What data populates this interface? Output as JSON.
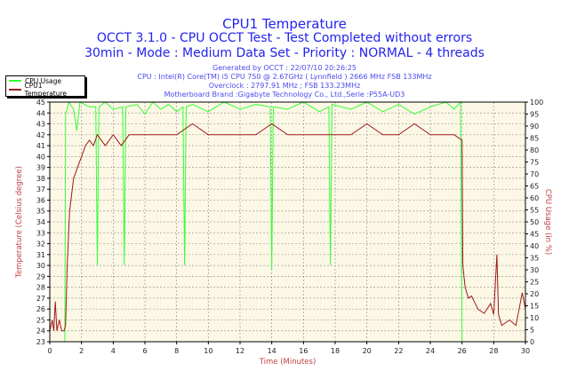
{
  "header": {
    "title": "CPU1 Temperature",
    "subtitle1": "OCCT 3.1.0 - CPU OCCT Test - Test Completed without errors",
    "subtitle2": "30min - Mode : Medium Data Set - Priority : NORMAL - 4 threads",
    "info": [
      "Generated by OCCT : 22/07/10 20:26:25",
      "CPU : Intel(R) Core(TM) i5 CPU 750 @ 2.67GHz ( Lynnfield ) 2666 MHz FSB 133MHz",
      "Overclock : 2797.91 MHz ; FSB 133.23MHz",
      "Motherboard Brand :Gigabyte Technology Co., Ltd.,Serie :P55A-UD3"
    ]
  },
  "colors": {
    "title": "#2222ee",
    "axis_label": "#c04040",
    "cpu_usage": "#33ff33",
    "temperature": "#a01818",
    "plot_bg": "#fdf8e6"
  },
  "chart_data": {
    "type": "line",
    "xlabel": "Time (Minutes)",
    "ylabel_left": "Temperature (Celsius degree)",
    "ylabel_right": "CPU Usage (in %)",
    "xlim": [
      0,
      30
    ],
    "ylim_left": [
      23,
      45
    ],
    "ylim_right": [
      0,
      100
    ],
    "x_ticks": [
      0,
      2,
      4,
      6,
      8,
      10,
      12,
      14,
      16,
      18,
      20,
      22,
      24,
      26,
      28,
      30
    ],
    "y_ticks_left": [
      23,
      24,
      25,
      26,
      27,
      28,
      29,
      30,
      31,
      32,
      33,
      34,
      35,
      36,
      37,
      38,
      39,
      40,
      41,
      42,
      43,
      44,
      45
    ],
    "y_ticks_right": [
      0,
      5,
      10,
      15,
      20,
      25,
      30,
      35,
      40,
      45,
      50,
      55,
      60,
      65,
      70,
      75,
      80,
      85,
      90,
      95,
      100
    ],
    "grid": true,
    "legend_placement": "top-left",
    "series": [
      {
        "name": "CPU Usage",
        "axis": "right",
        "x": [
          0,
          0.95,
          1.0,
          1.2,
          1.5,
          1.7,
          1.9,
          2.5,
          2.9,
          3.0,
          3.1,
          3.5,
          4.0,
          4.6,
          4.7,
          4.8,
          5.5,
          6.0,
          6.5,
          7.0,
          7.5,
          8.0,
          8.4,
          8.5,
          8.6,
          9.0,
          10,
          11,
          12,
          13,
          13.9,
          14.0,
          14.1,
          15,
          16,
          17,
          17.6,
          17.7,
          17.8,
          19,
          20,
          21,
          22,
          23,
          24,
          25,
          25.5,
          25.9,
          26.0,
          30
        ],
        "y": [
          0,
          0,
          95,
          100,
          97,
          88,
          100,
          98,
          98,
          32,
          98,
          100,
          97,
          98,
          32,
          98,
          99,
          95,
          100,
          97,
          99,
          96,
          98,
          32,
          98,
          99,
          96,
          100,
          97,
          99,
          98,
          30,
          98,
          97,
          100,
          96,
          98,
          32,
          99,
          97,
          100,
          96,
          99,
          95,
          98,
          100,
          97,
          100,
          0,
          0
        ]
      },
      {
        "name": "CPU1 Temperature",
        "axis": "left",
        "x": [
          0,
          0.15,
          0.25,
          0.35,
          0.45,
          0.6,
          0.75,
          0.9,
          1.0,
          1.1,
          1.25,
          1.5,
          1.75,
          2.0,
          2.25,
          2.5,
          2.75,
          3.0,
          3.5,
          4.0,
          4.5,
          5,
          6,
          7,
          8,
          9,
          10,
          11,
          12,
          13,
          14,
          15,
          16,
          17,
          18,
          19,
          20,
          21,
          22,
          23,
          24,
          25,
          25.5,
          26.0,
          26.05,
          26.2,
          26.4,
          26.6,
          27.0,
          27.4,
          27.8,
          28.0,
          28.2,
          28.3,
          28.5,
          29.0,
          29.4,
          29.6,
          29.8,
          30
        ],
        "y": [
          24,
          25,
          24,
          26.7,
          24,
          25,
          24,
          24,
          24.5,
          30,
          35,
          38,
          39,
          40,
          41,
          41.5,
          41,
          42,
          41,
          42,
          41,
          42,
          42,
          42,
          42,
          43,
          42,
          42,
          42,
          42,
          43,
          42,
          42,
          42,
          42,
          42,
          43,
          42,
          42,
          43,
          42,
          42,
          42,
          41.5,
          30,
          28,
          27,
          27.2,
          26,
          25.6,
          26.5,
          25.5,
          31,
          25.5,
          24.5,
          25,
          24.5,
          26,
          27.5,
          26
        ]
      }
    ]
  }
}
